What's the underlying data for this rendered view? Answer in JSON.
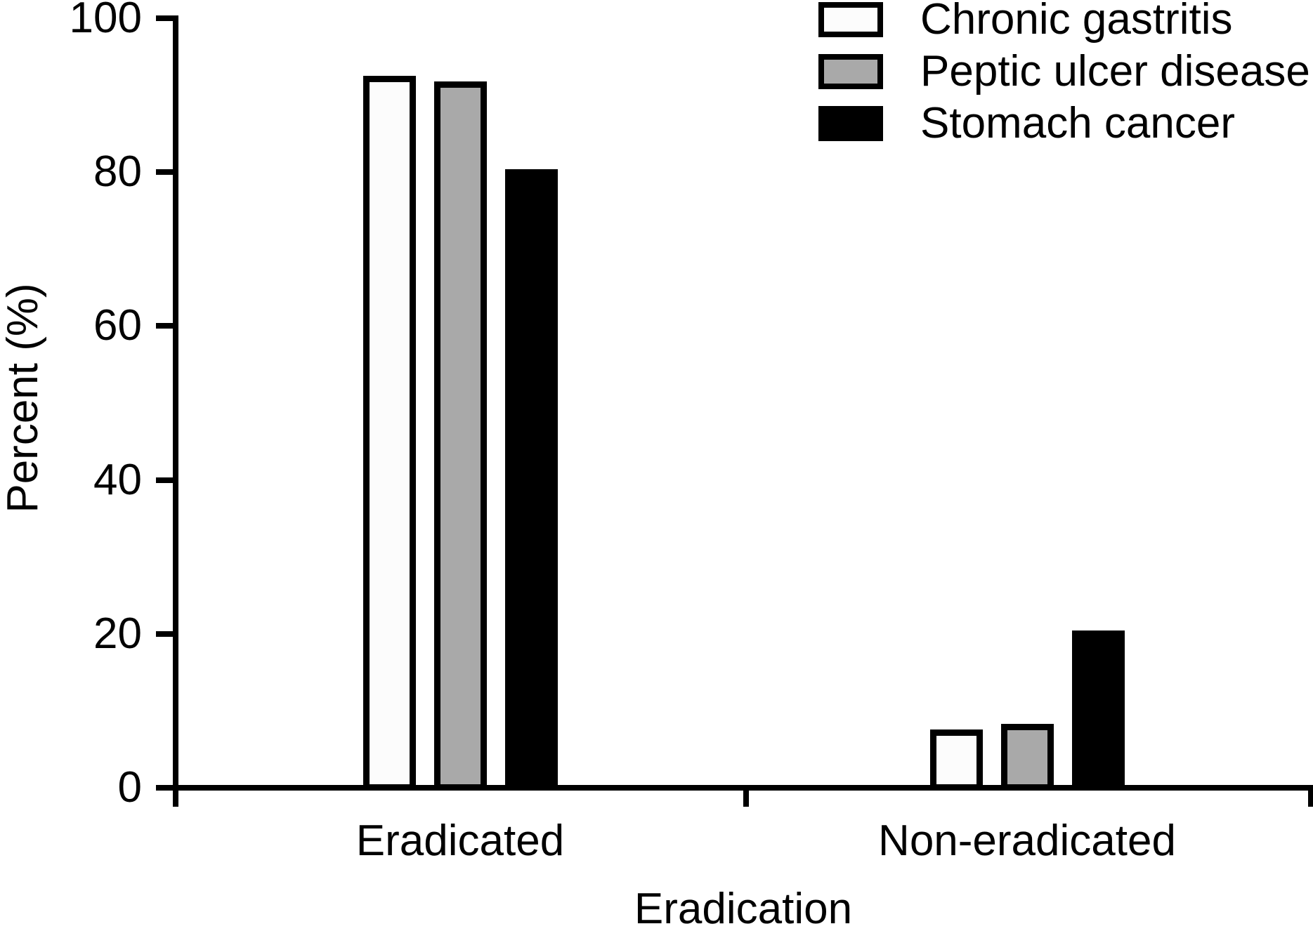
{
  "chart_data": {
    "type": "bar",
    "title": "",
    "xlabel": "Eradication",
    "ylabel": "Percent (%)",
    "categories": [
      "Eradicated",
      "Non-eradicated"
    ],
    "series": [
      {
        "name": "Chronic gastritis",
        "color": "#fcfcfc",
        "values": [
          92.5,
          7.6
        ]
      },
      {
        "name": "Peptic ulcer disease",
        "color": "#a9a9a9",
        "values": [
          91.8,
          8.3
        ]
      },
      {
        "name": "Stomach cancer",
        "color": "#000000",
        "values": [
          80.4,
          20.4
        ]
      }
    ],
    "ylim": [
      0,
      100
    ],
    "yticks": [
      0,
      20,
      40,
      60,
      80,
      100
    ],
    "legend_position": "top-right",
    "grid": false,
    "bar_outline_color": "#000000",
    "text_color": "#000000",
    "background_color": "#ffffff"
  }
}
